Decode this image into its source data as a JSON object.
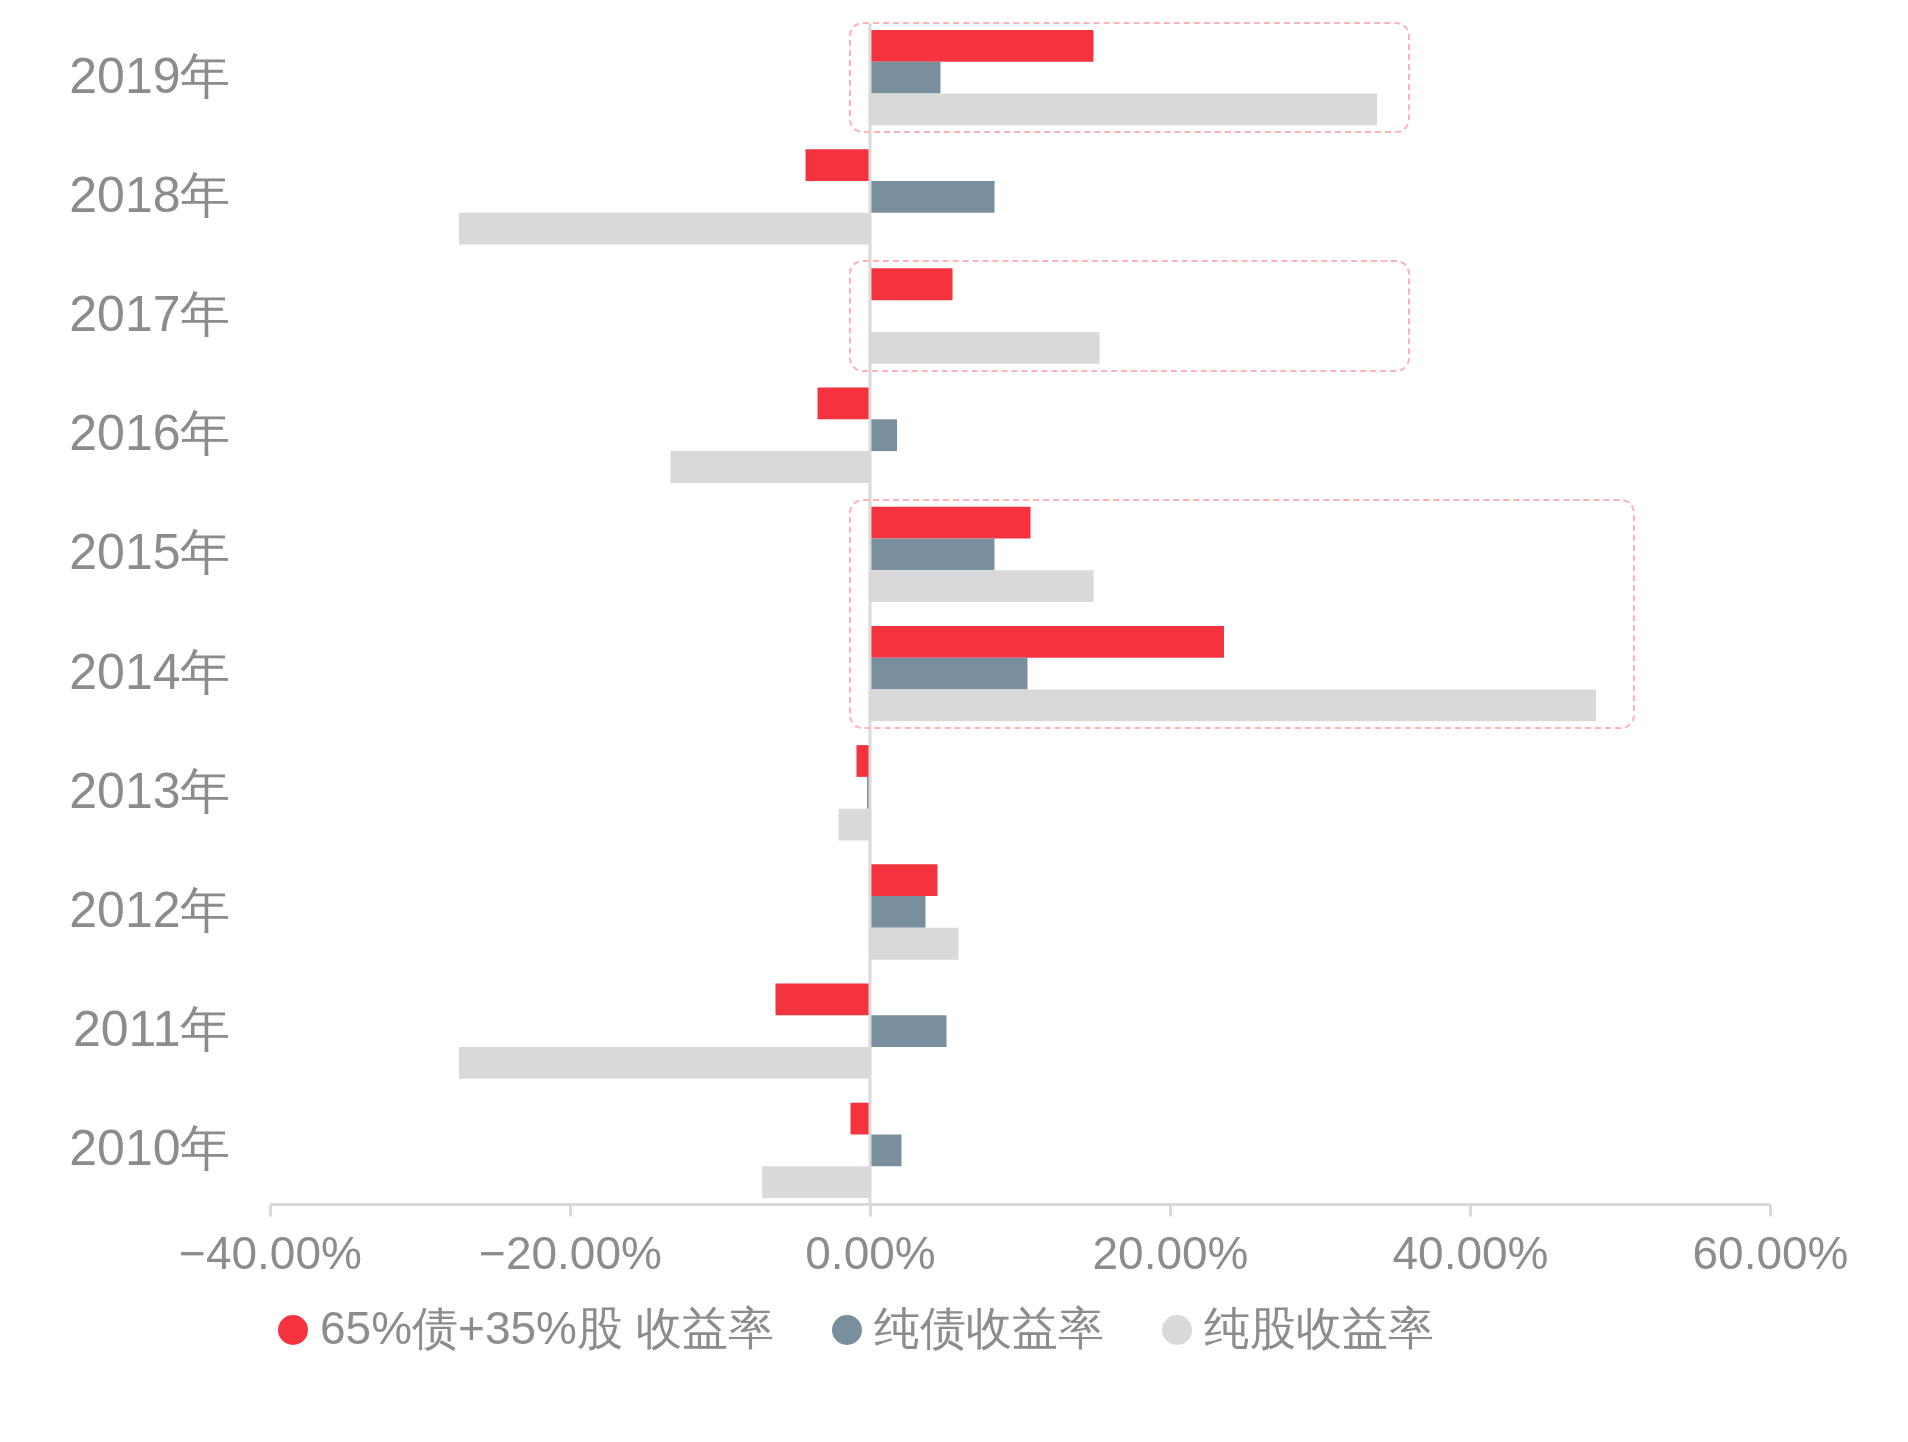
{
  "chart_data": {
    "type": "bar",
    "orientation": "horizontal",
    "categories": [
      "2019年",
      "2018年",
      "2017年",
      "2016年",
      "2015年",
      "2014年",
      "2013年",
      "2012年",
      "2011年",
      "2010年"
    ],
    "series": [
      {
        "name": "65%债+35%股 收益率",
        "color": "#f5333f",
        "values": [
          14.9,
          -4.3,
          5.5,
          -3.5,
          10.7,
          23.6,
          -0.9,
          4.5,
          -6.3,
          -1.3
        ]
      },
      {
        "name": "纯债收益率",
        "color": "#7a8f9e",
        "values": [
          4.7,
          8.3,
          null,
          1.8,
          8.3,
          10.5,
          -0.2,
          3.7,
          5.1,
          2.1
        ]
      },
      {
        "name": "纯股收益率",
        "color": "#d9d9d9",
        "values": [
          33.8,
          -27.4,
          15.3,
          -13.3,
          14.9,
          48.4,
          -2.1,
          5.9,
          -27.4,
          -7.2
        ]
      }
    ],
    "xlim": [
      -40,
      60
    ],
    "xticks": [
      {
        "value": -40,
        "label": "−40.00%"
      },
      {
        "value": -20,
        "label": "−20.00%"
      },
      {
        "value": 0,
        "label": "0.00%"
      },
      {
        "value": 20,
        "label": "20.00%"
      },
      {
        "value": 40,
        "label": "40.00%"
      },
      {
        "value": 60,
        "label": "60.00%"
      }
    ],
    "ref_lines": [
      {
        "axis": "x",
        "value": 0,
        "color": "#d9d9d9"
      }
    ],
    "grid": false,
    "legend": "bottom"
  }
}
